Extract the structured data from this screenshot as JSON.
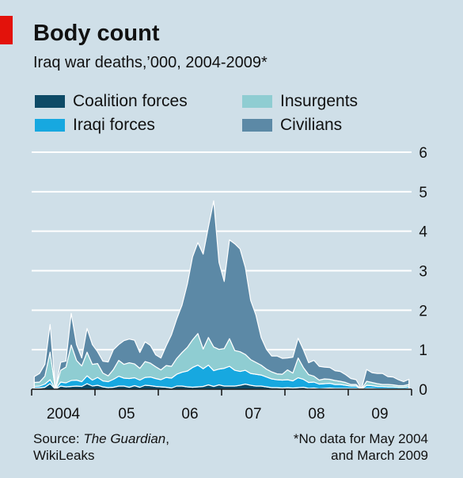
{
  "header": {
    "title": "Body count",
    "subtitle": "Iraq war deaths,’000, 2004-2009*"
  },
  "legend": [
    {
      "label": "Coalition forces",
      "color": "#0d4a66"
    },
    {
      "label": "Insurgents",
      "color": "#8fcdd2"
    },
    {
      "label": "Iraqi forces",
      "color": "#17a8e0"
    },
    {
      "label": "Civilians",
      "color": "#5c89a6"
    }
  ],
  "footer": {
    "source_prefix": "Source: ",
    "source_name": "The Guardian",
    "source_suffix": ",",
    "source_line2": "WikiLeaks",
    "note_line1": "*No data for May 2004",
    "note_line2": "and March 2009"
  },
  "chart_data": {
    "type": "area",
    "stacked": true,
    "unit": "’000",
    "ylim": [
      0,
      6
    ],
    "yticks": [
      "0",
      "1",
      "2",
      "3",
      "4",
      "5",
      "6"
    ],
    "y_axis_side": "right",
    "grid": true,
    "xlim": [
      "2004-01",
      "2009-12"
    ],
    "x_tick_labels": [
      "2004",
      "05",
      "06",
      "07",
      "08",
      "09"
    ],
    "x": [
      "2004-01",
      "2004-02",
      "2004-03",
      "2004-04",
      "2004-05",
      "2004-06",
      "2004-07",
      "2004-08",
      "2004-09",
      "2004-10",
      "2004-11",
      "2004-12",
      "2005-01",
      "2005-02",
      "2005-03",
      "2005-04",
      "2005-05",
      "2005-06",
      "2005-07",
      "2005-08",
      "2005-09",
      "2005-10",
      "2005-11",
      "2005-12",
      "2006-01",
      "2006-02",
      "2006-03",
      "2006-04",
      "2006-05",
      "2006-06",
      "2006-07",
      "2006-08",
      "2006-09",
      "2006-10",
      "2006-11",
      "2006-12",
      "2007-01",
      "2007-02",
      "2007-03",
      "2007-04",
      "2007-05",
      "2007-06",
      "2007-07",
      "2007-08",
      "2007-09",
      "2007-10",
      "2007-11",
      "2007-12",
      "2008-01",
      "2008-02",
      "2008-03",
      "2008-04",
      "2008-05",
      "2008-06",
      "2008-07",
      "2008-08",
      "2008-09",
      "2008-10",
      "2008-11",
      "2008-12",
      "2009-01",
      "2009-02",
      "2009-03",
      "2009-04",
      "2009-05",
      "2009-06",
      "2009-07",
      "2009-08",
      "2009-09",
      "2009-10",
      "2009-11",
      "2009-12"
    ],
    "series": [
      {
        "name": "Coalition forces",
        "color": "#0d4a66",
        "values": [
          0.03,
          0.03,
          0.05,
          0.14,
          0,
          0.08,
          0.06,
          0.07,
          0.08,
          0.07,
          0.14,
          0.08,
          0.1,
          0.06,
          0.04,
          0.05,
          0.08,
          0.08,
          0.05,
          0.09,
          0.05,
          0.1,
          0.09,
          0.07,
          0.06,
          0.05,
          0.03,
          0.08,
          0.08,
          0.06,
          0.05,
          0.06,
          0.07,
          0.11,
          0.07,
          0.11,
          0.08,
          0.08,
          0.08,
          0.1,
          0.13,
          0.1,
          0.08,
          0.08,
          0.06,
          0.04,
          0.04,
          0.03,
          0.04,
          0.03,
          0.04,
          0.05,
          0.02,
          0.03,
          0.01,
          0.02,
          0.03,
          0.02,
          0.02,
          0.02,
          0.02,
          0.02,
          0,
          0.02,
          0.02,
          0.01,
          0.01,
          0.01,
          0.01,
          0.01,
          0.01,
          0.02
        ]
      },
      {
        "name": "Iraqi forces",
        "color": "#17a8e0",
        "values": [
          0.04,
          0.05,
          0.08,
          0.1,
          0,
          0.1,
          0.1,
          0.15,
          0.15,
          0.12,
          0.2,
          0.15,
          0.2,
          0.15,
          0.15,
          0.2,
          0.25,
          0.2,
          0.22,
          0.2,
          0.18,
          0.2,
          0.22,
          0.2,
          0.18,
          0.25,
          0.25,
          0.3,
          0.35,
          0.4,
          0.5,
          0.55,
          0.45,
          0.5,
          0.4,
          0.4,
          0.45,
          0.5,
          0.4,
          0.35,
          0.35,
          0.3,
          0.3,
          0.28,
          0.25,
          0.22,
          0.2,
          0.2,
          0.2,
          0.18,
          0.25,
          0.2,
          0.15,
          0.15,
          0.12,
          0.12,
          0.12,
          0.1,
          0.1,
          0.08,
          0.06,
          0.06,
          0,
          0.08,
          0.07,
          0.06,
          0.06,
          0.05,
          0.05,
          0.04,
          0.04,
          0.05
        ]
      },
      {
        "name": "Insurgents",
        "color": "#8fcdd2",
        "values": [
          0.1,
          0.1,
          0.2,
          0.7,
          0,
          0.3,
          0.4,
          0.9,
          0.5,
          0.4,
          0.6,
          0.4,
          0.35,
          0.2,
          0.15,
          0.25,
          0.4,
          0.35,
          0.4,
          0.35,
          0.3,
          0.4,
          0.35,
          0.3,
          0.25,
          0.3,
          0.3,
          0.4,
          0.5,
          0.6,
          0.7,
          0.8,
          0.5,
          0.7,
          0.6,
          0.5,
          0.5,
          0.7,
          0.5,
          0.5,
          0.4,
          0.35,
          0.3,
          0.25,
          0.2,
          0.18,
          0.15,
          0.15,
          0.25,
          0.2,
          0.5,
          0.3,
          0.2,
          0.15,
          0.1,
          0.12,
          0.1,
          0.1,
          0.08,
          0.07,
          0.04,
          0.04,
          0,
          0.1,
          0.08,
          0.07,
          0.05,
          0.06,
          0.05,
          0.04,
          0.04,
          0.05
        ]
      },
      {
        "name": "Civilians",
        "color": "#5c89a6",
        "values": [
          0.15,
          0.22,
          0.3,
          0.7,
          0,
          0.2,
          0.15,
          0.8,
          0.4,
          0.2,
          0.6,
          0.5,
          0.3,
          0.3,
          0.35,
          0.5,
          0.4,
          0.6,
          0.6,
          0.6,
          0.4,
          0.5,
          0.45,
          0.3,
          0.3,
          0.5,
          0.8,
          1.0,
          1.2,
          1.6,
          2.1,
          2.3,
          2.4,
          2.8,
          3.7,
          2.2,
          1.7,
          2.5,
          2.7,
          2.6,
          2.2,
          1.5,
          1.2,
          0.7,
          0.5,
          0.4,
          0.45,
          0.4,
          0.3,
          0.4,
          0.5,
          0.45,
          0.3,
          0.4,
          0.35,
          0.3,
          0.3,
          0.25,
          0.25,
          0.2,
          0.15,
          0.12,
          0,
          0.3,
          0.25,
          0.26,
          0.28,
          0.2,
          0.2,
          0.15,
          0.1,
          0.13
        ]
      }
    ]
  }
}
